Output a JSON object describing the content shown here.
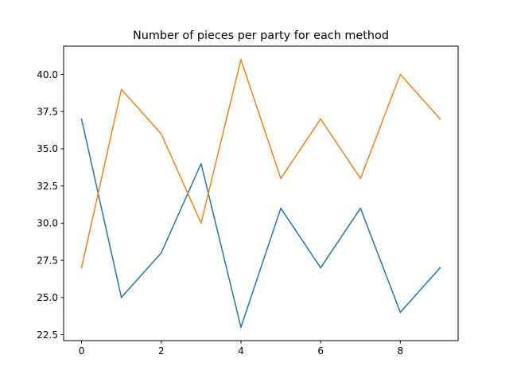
{
  "chart_data": {
    "type": "line",
    "title": "Number of pieces per party for each method",
    "xlabel": "",
    "ylabel": "",
    "x": [
      0,
      1,
      2,
      3,
      4,
      5,
      6,
      7,
      8,
      9
    ],
    "series": [
      {
        "values": [
          37,
          25,
          28,
          34,
          23,
          31,
          27,
          31,
          24,
          27
        ],
        "color": "#1f77b4"
      },
      {
        "values": [
          27,
          39,
          36,
          30,
          41,
          33,
          37,
          33,
          40,
          37
        ],
        "color": "#ff7f0e"
      }
    ],
    "xlim": [
      -0.45,
      9.45
    ],
    "ylim": [
      22.1,
      41.9
    ],
    "xticks": [
      0,
      2,
      4,
      6,
      8
    ],
    "xtick_labels": [
      "0",
      "2",
      "4",
      "6",
      "8"
    ],
    "yticks": [
      22.5,
      25.0,
      27.5,
      30.0,
      32.5,
      35.0,
      37.5,
      40.0
    ],
    "ytick_labels": [
      "22.5",
      "25.0",
      "27.5",
      "30.0",
      "32.5",
      "35.0",
      "37.5",
      "40.0"
    ],
    "grid": false,
    "legend": "none"
  }
}
